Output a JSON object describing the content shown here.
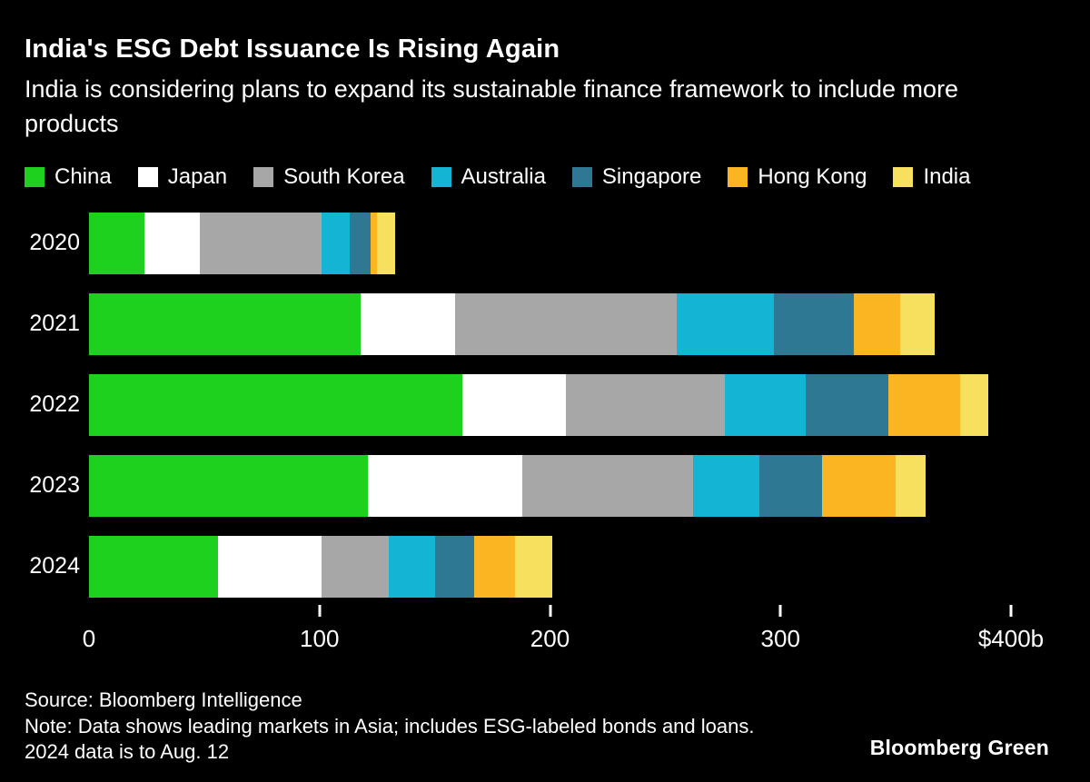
{
  "header": {
    "title": "India's ESG Debt Issuance Is Rising Again",
    "subtitle": "India is considering plans to expand its sustainable finance framework to include more products"
  },
  "footer": {
    "source": "Source: Bloomberg Intelligence",
    "note_line1": "Note: Data shows leading markets in Asia; includes ESG-labeled bonds and loans.",
    "note_line2": "2024 data is to Aug. 12",
    "brand": "Bloomberg Green"
  },
  "colors": {
    "background": "#000000",
    "text": "#ffffff"
  },
  "chart_data": {
    "type": "bar",
    "orientation": "horizontal",
    "stacked": true,
    "title": "India's ESG Debt Issuance Is Rising Again",
    "xlabel": "",
    "ylabel": "",
    "xlim": [
      0,
      400
    ],
    "grid": false,
    "legend_position": "top",
    "categories": [
      "2020",
      "2021",
      "2022",
      "2023",
      "2024"
    ],
    "series": [
      {
        "name": "China",
        "color": "#1FD11F",
        "values": [
          24,
          118,
          162,
          121,
          56
        ]
      },
      {
        "name": "Japan",
        "color": "#FFFFFF",
        "values": [
          24,
          41,
          45,
          67,
          45
        ]
      },
      {
        "name": "South Korea",
        "color": "#A7A7A7",
        "values": [
          53,
          96,
          69,
          74,
          29
        ]
      },
      {
        "name": "Australia",
        "color": "#14B4D4",
        "values": [
          12,
          42,
          35,
          29,
          20
        ]
      },
      {
        "name": "Singapore",
        "color": "#2E7893",
        "values": [
          9,
          35,
          36,
          27,
          17
        ]
      },
      {
        "name": "Hong Kong",
        "color": "#FBB522",
        "values": [
          3,
          20,
          31,
          32,
          18
        ]
      },
      {
        "name": "India",
        "color": "#F6E05E",
        "values": [
          8,
          15,
          12,
          13,
          16
        ]
      }
    ],
    "x_ticks": [
      {
        "value": 0,
        "label": "0"
      },
      {
        "value": 100,
        "label": "100"
      },
      {
        "value": 200,
        "label": "200"
      },
      {
        "value": 300,
        "label": "300"
      },
      {
        "value": 400,
        "label": "$400b"
      }
    ]
  }
}
